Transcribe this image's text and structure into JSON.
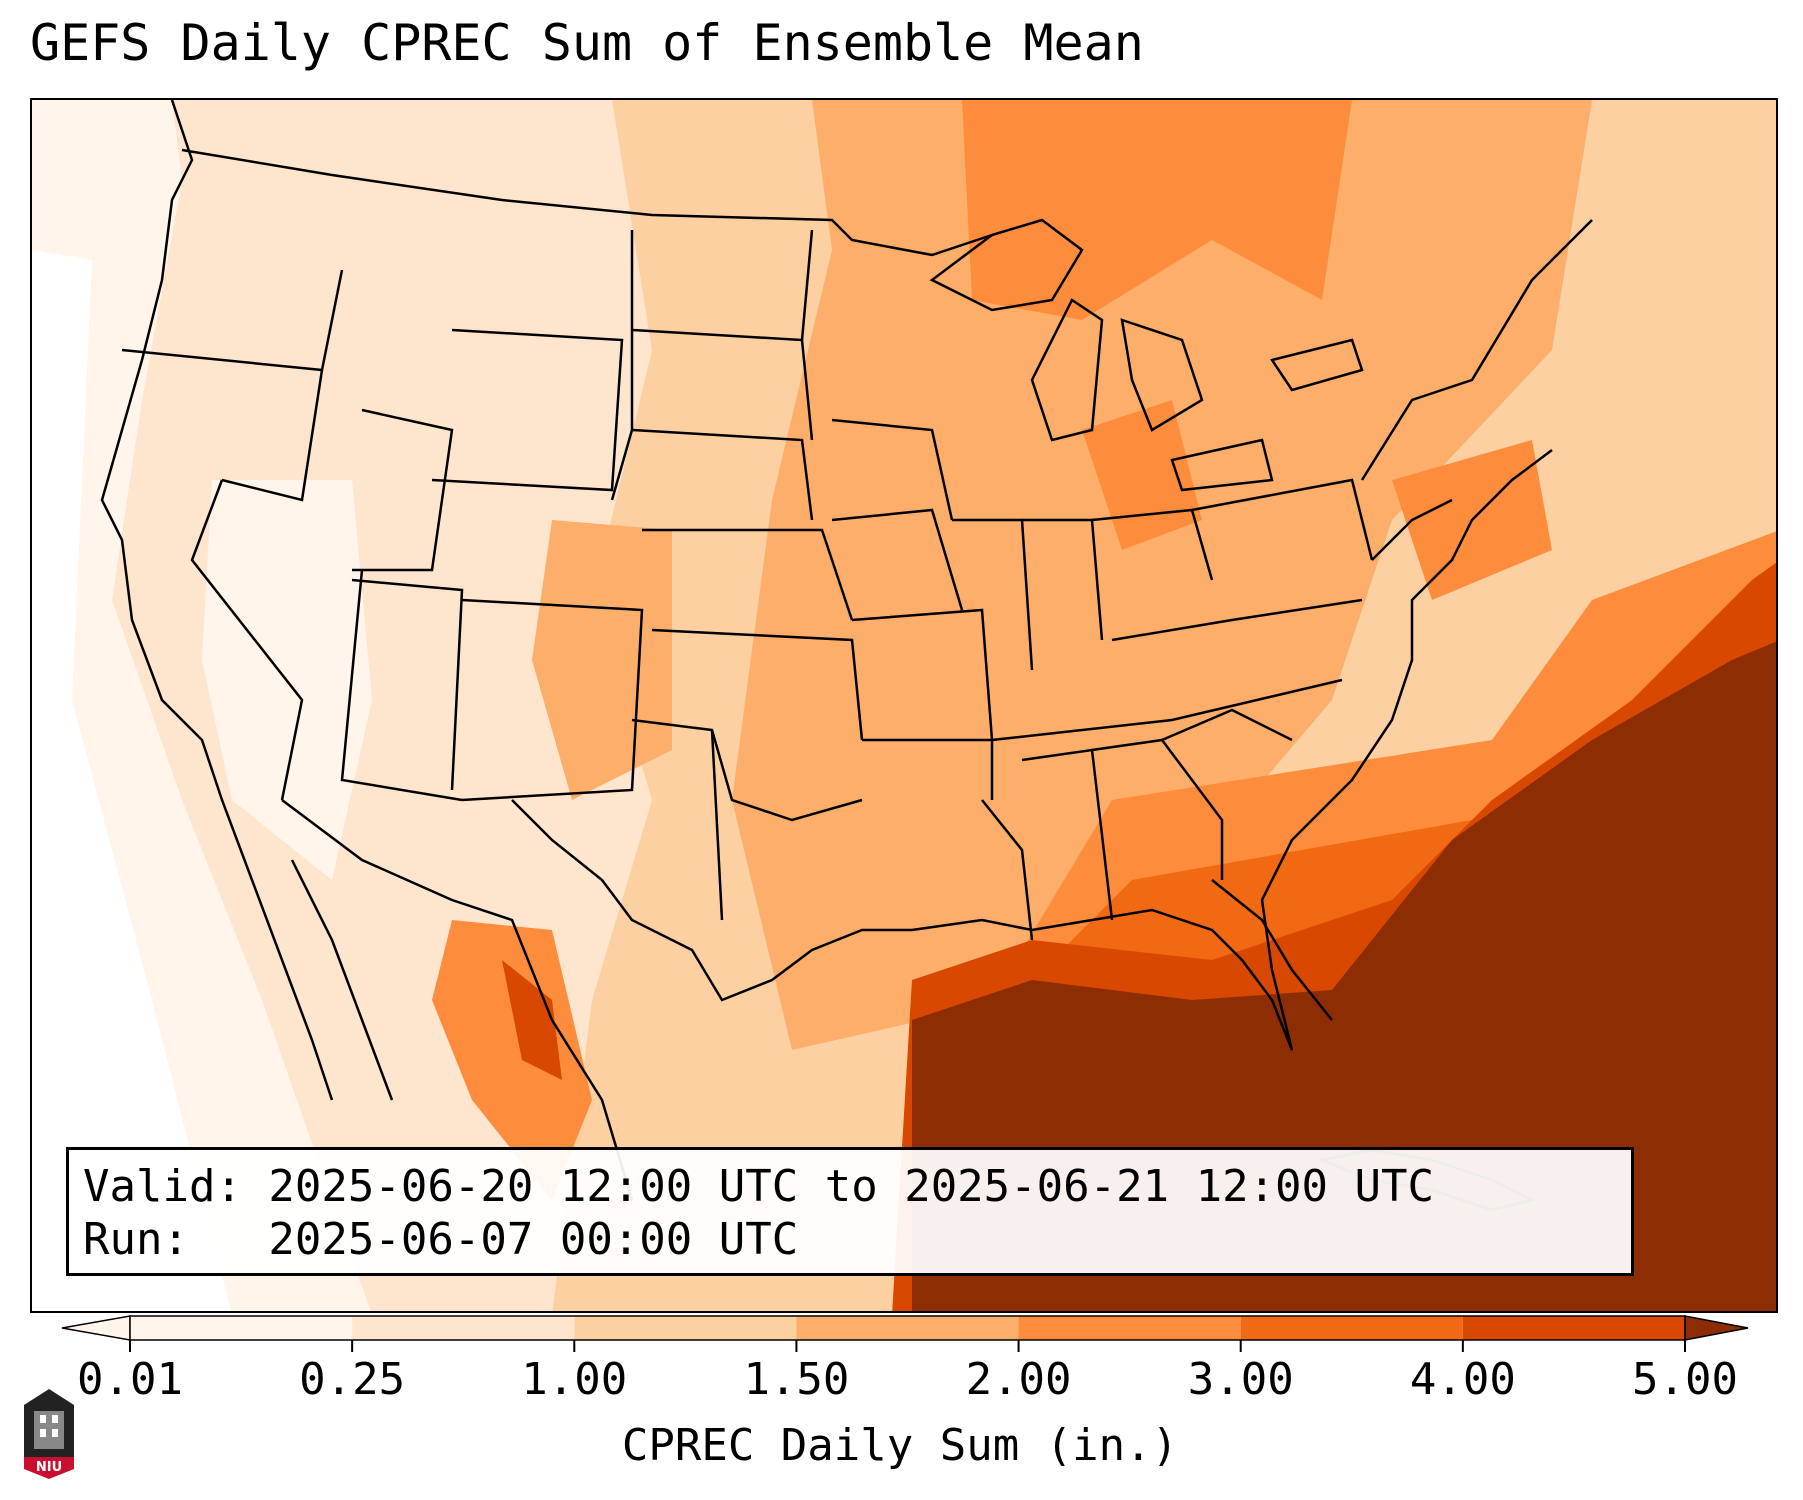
{
  "title": "GEFS Daily CPREC Sum of Ensemble Mean",
  "info": {
    "valid": "Valid: 2025-06-20 12:00 UTC to 2025-06-21 12:00 UTC",
    "run": "Run:   2025-06-07 00:00 UTC"
  },
  "colorbar": {
    "label": "CPREC Daily Sum (in.)",
    "ticks": [
      "0.01",
      "0.25",
      "1.00",
      "1.50",
      "2.00",
      "3.00",
      "4.00",
      "5.00"
    ],
    "colors": [
      "#fff5eb",
      "#fee6ce",
      "#fdd0a2",
      "#fdae6b",
      "#fd8d3c",
      "#f16913",
      "#d94801",
      "#8c2d04"
    ],
    "extend": "both"
  },
  "logo": {
    "text": "NIU"
  }
}
